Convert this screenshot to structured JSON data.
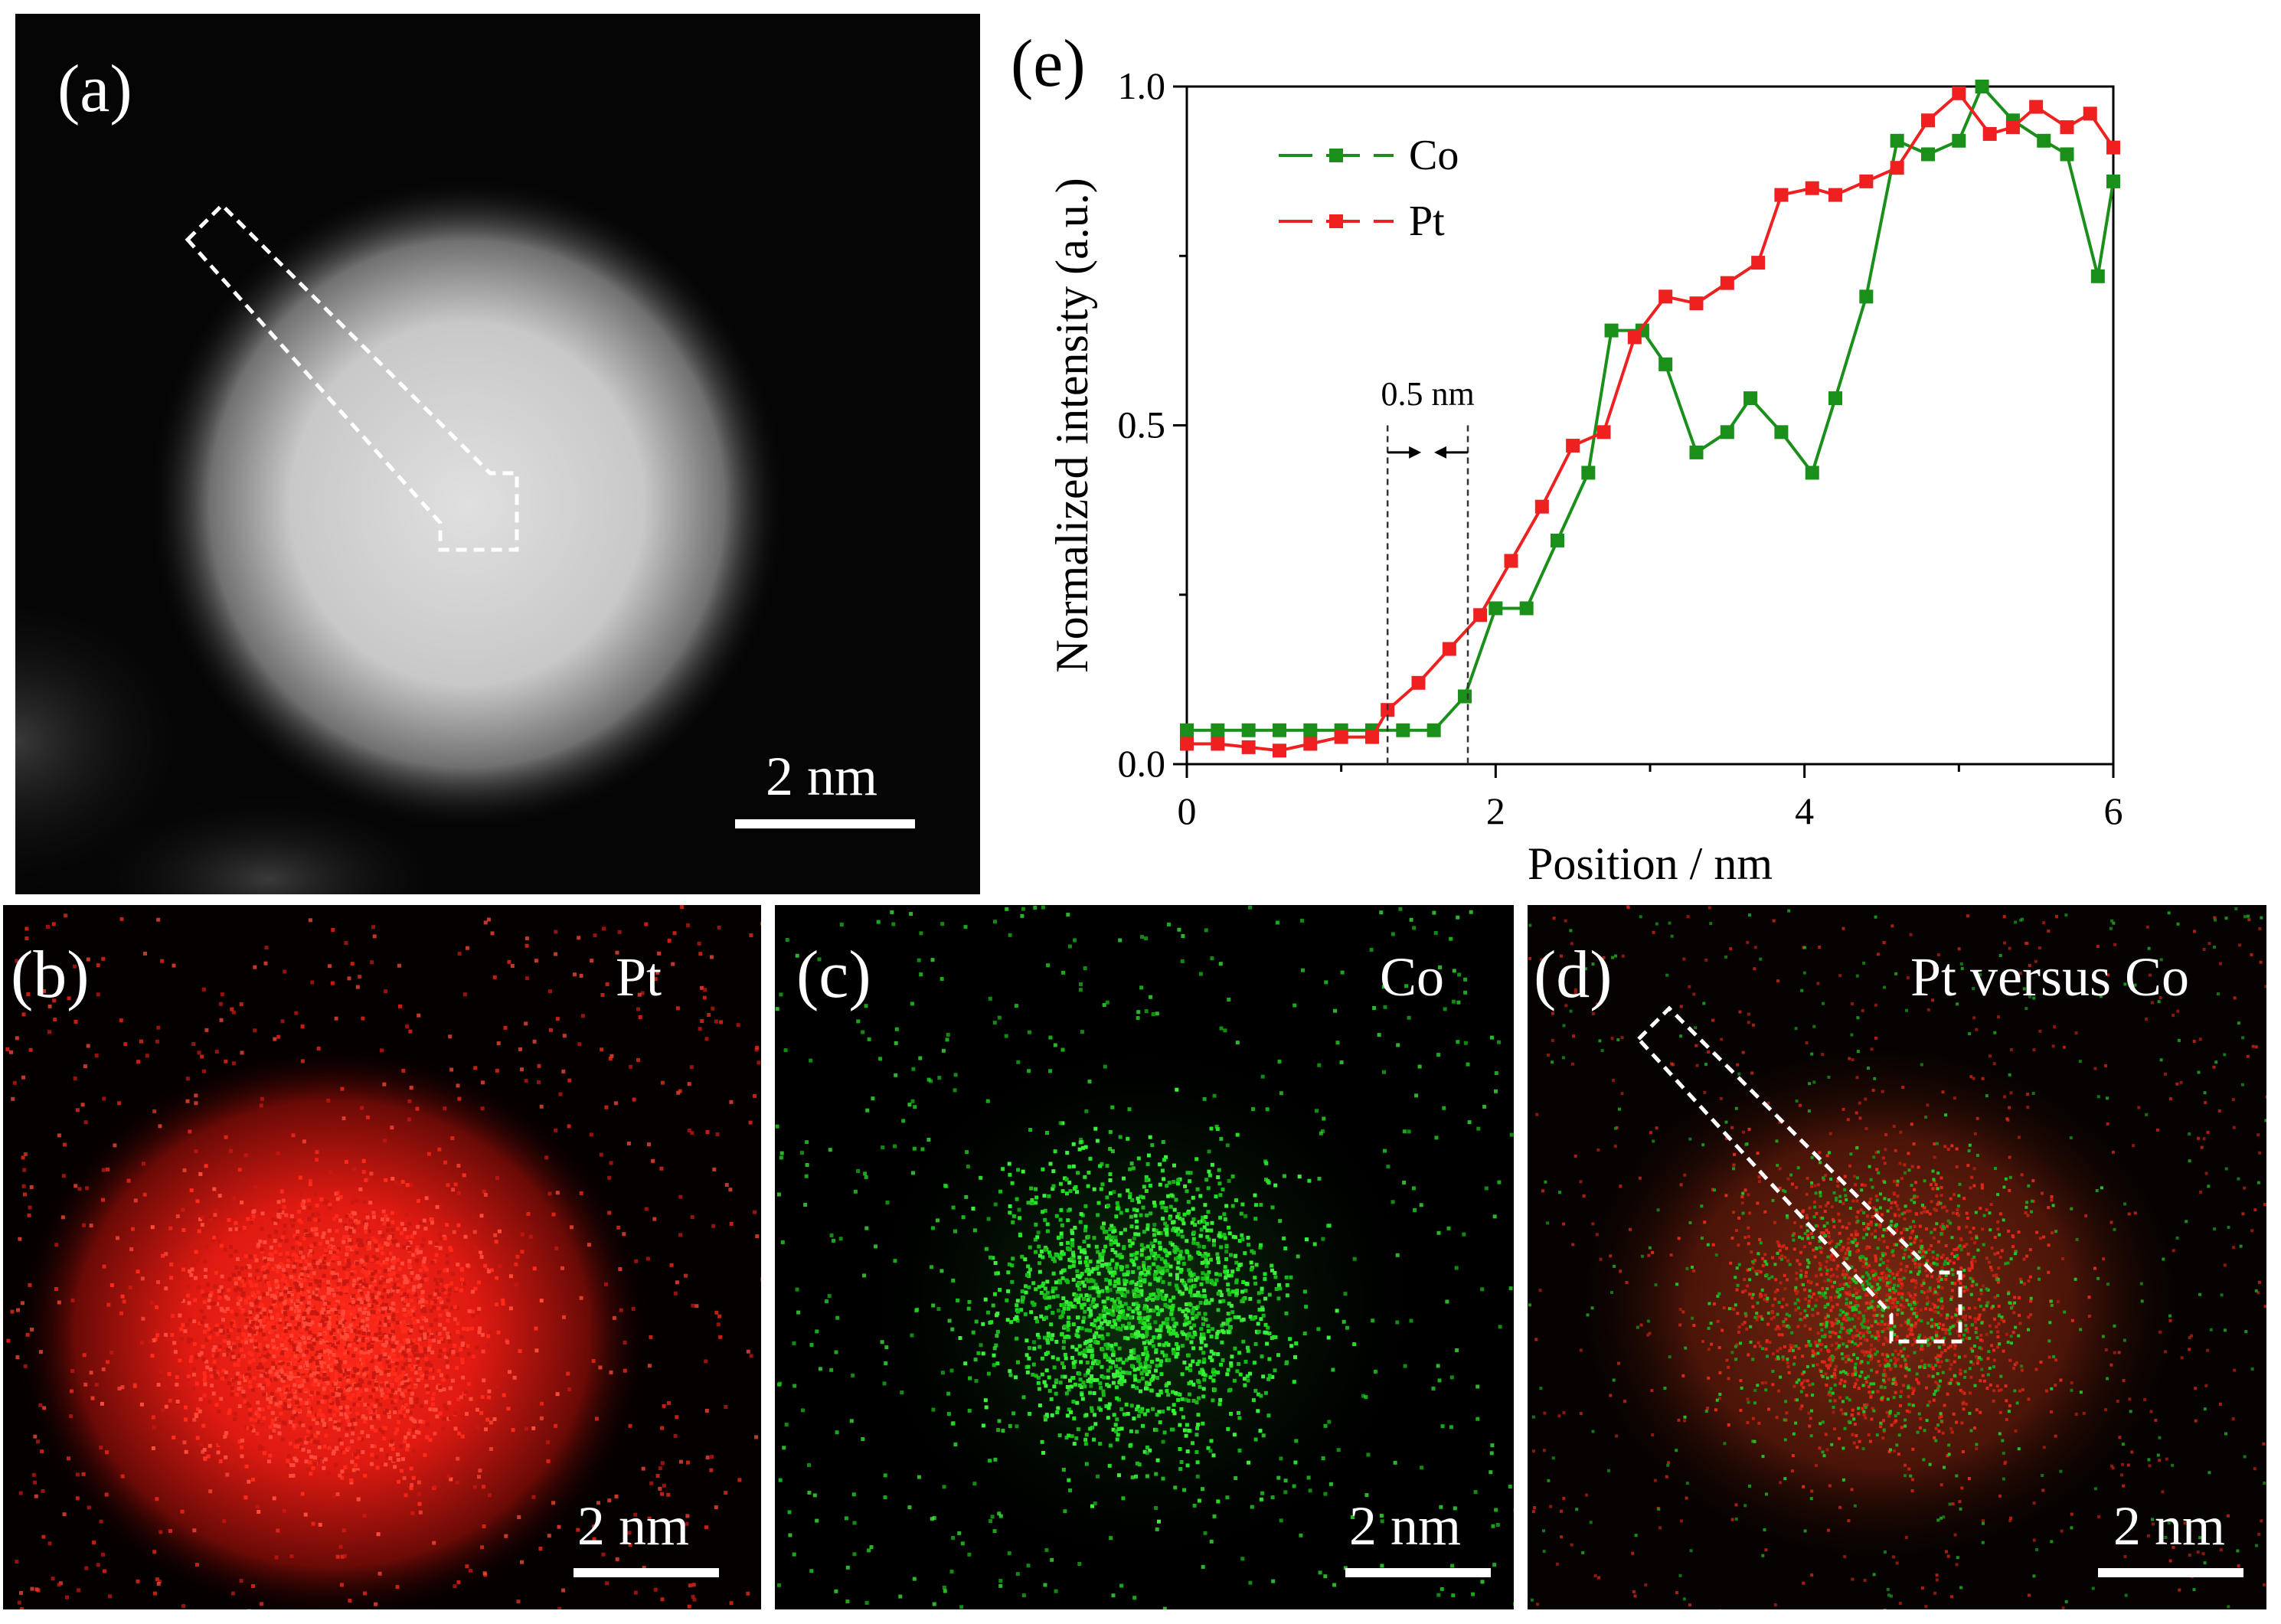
{
  "figure": {
    "panel_a": {
      "label": "(a)",
      "scale_bar": "2 nm"
    },
    "panel_b": {
      "label": "(b)",
      "element": "Pt",
      "scale_bar": "2 nm",
      "color": "#ff2a1a"
    },
    "panel_c": {
      "label": "(c)",
      "element": "Co",
      "scale_bar": "2 nm",
      "color": "#22e022"
    },
    "panel_d": {
      "label": "(d)",
      "element": "Pt versus Co",
      "scale_bar": "2 nm"
    },
    "panel_e": {
      "label": "(e)"
    }
  },
  "chart_data": {
    "type": "line",
    "title": "",
    "xlabel": "Position / nm",
    "ylabel": "Normalized intensity (a.u.)",
    "xlim": [
      0,
      6
    ],
    "ylim": [
      0,
      1.0
    ],
    "x_ticks": [
      "0",
      "2",
      "4",
      "6"
    ],
    "y_ticks": [
      "0.0",
      "0.5",
      "1.0"
    ],
    "legend": "top-left",
    "annotation": {
      "text": "0.5 nm",
      "x_start": 1.3,
      "x_end": 1.82
    },
    "series": [
      {
        "name": "Co",
        "color": "#1a8f1a",
        "x": [
          0,
          0.2,
          0.4,
          0.6,
          0.8,
          1.0,
          1.2,
          1.4,
          1.6,
          1.8,
          2.0,
          2.2,
          2.4,
          2.6,
          2.75,
          2.95,
          3.1,
          3.3,
          3.5,
          3.65,
          3.85,
          4.05,
          4.2,
          4.4,
          4.6,
          4.8,
          5.0,
          5.15,
          5.35,
          5.55,
          5.7,
          5.9,
          6.0
        ],
        "values": [
          0.05,
          0.05,
          0.05,
          0.05,
          0.05,
          0.05,
          0.05,
          0.05,
          0.05,
          0.1,
          0.23,
          0.23,
          0.33,
          0.43,
          0.64,
          0.64,
          0.59,
          0.46,
          0.49,
          0.54,
          0.49,
          0.43,
          0.54,
          0.69,
          0.92,
          0.9,
          0.92,
          1.0,
          0.95,
          0.92,
          0.9,
          0.72,
          0.86
        ]
      },
      {
        "name": "Pt",
        "color": "#ee2020",
        "x": [
          0,
          0.2,
          0.4,
          0.6,
          0.8,
          1.0,
          1.2,
          1.3,
          1.5,
          1.7,
          1.9,
          2.1,
          2.3,
          2.5,
          2.7,
          2.9,
          3.1,
          3.3,
          3.5,
          3.7,
          3.85,
          4.05,
          4.2,
          4.4,
          4.6,
          4.8,
          5.0,
          5.2,
          5.35,
          5.5,
          5.7,
          5.85,
          6.0
        ],
        "values": [
          0.03,
          0.03,
          0.025,
          0.02,
          0.03,
          0.04,
          0.04,
          0.08,
          0.12,
          0.17,
          0.22,
          0.3,
          0.38,
          0.47,
          0.49,
          0.63,
          0.69,
          0.68,
          0.71,
          0.74,
          0.84,
          0.85,
          0.84,
          0.86,
          0.88,
          0.95,
          0.99,
          0.93,
          0.94,
          0.97,
          0.94,
          0.96,
          0.91
        ]
      }
    ]
  }
}
